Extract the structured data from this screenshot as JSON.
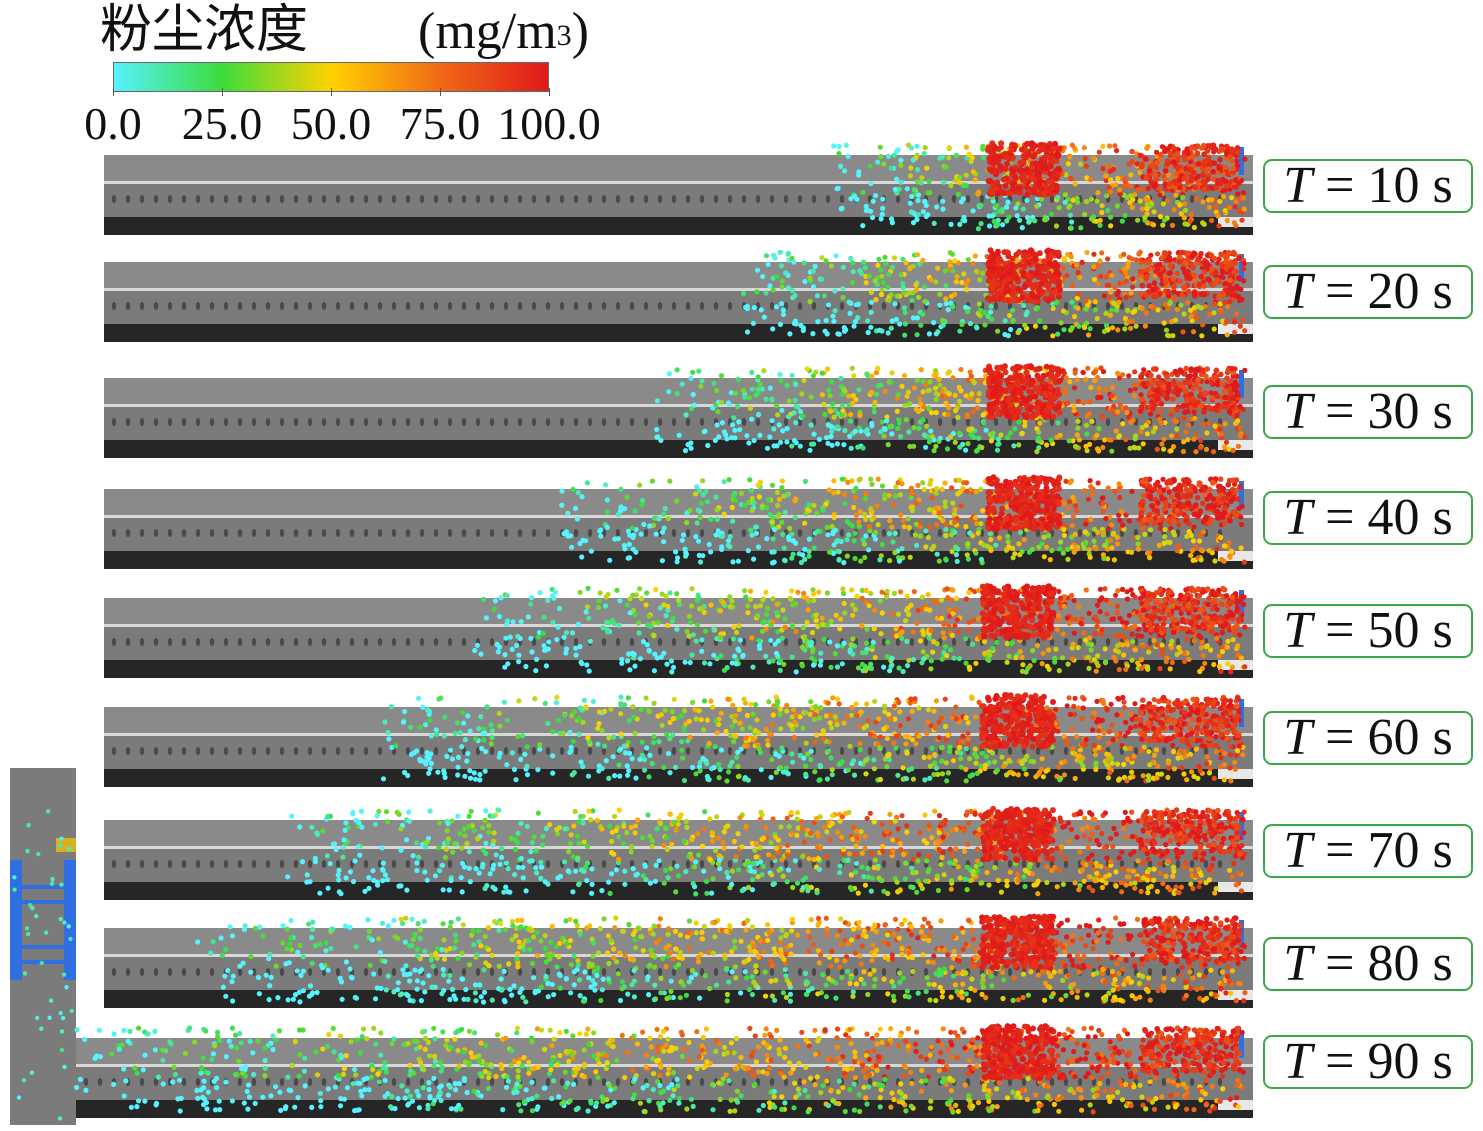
{
  "legend": {
    "title": "粉尘浓度",
    "unit_base": "(mg/m",
    "unit_exp": "3",
    "unit_close": ")",
    "ticks": [
      "0.0",
      "25.0",
      "50.0",
      "75.0",
      "100.0"
    ],
    "range": [
      0,
      100
    ],
    "colors": [
      "#55f2ff",
      "#3cdc3c",
      "#ffd200",
      "#f06a16",
      "#e01a1a"
    ]
  },
  "panels": [
    {
      "time_var": "T",
      "time_eq": " = 10 s",
      "t": 10
    },
    {
      "time_var": "T",
      "time_eq": " = 20 s",
      "t": 20
    },
    {
      "time_var": "T",
      "time_eq": " = 30 s",
      "t": 30
    },
    {
      "time_var": "T",
      "time_eq": " = 40 s",
      "t": 40
    },
    {
      "time_var": "T",
      "time_eq": " = 50 s",
      "t": 50
    },
    {
      "time_var": "T",
      "time_eq": " = 60 s",
      "t": 60
    },
    {
      "time_var": "T",
      "time_eq": " = 70 s",
      "t": 70
    },
    {
      "time_var": "T",
      "time_eq": " = 80 s",
      "t": 80
    },
    {
      "time_var": "T",
      "time_eq": " = 90 s",
      "t": 90
    }
  ],
  "colors": {
    "tunnel": "#7b7b7b",
    "tunnel_dark": "#595959",
    "floor": "#262626",
    "rail": "#d8d8d8",
    "label_border": "#3aa84a",
    "machine": "#2f6fe0"
  }
}
